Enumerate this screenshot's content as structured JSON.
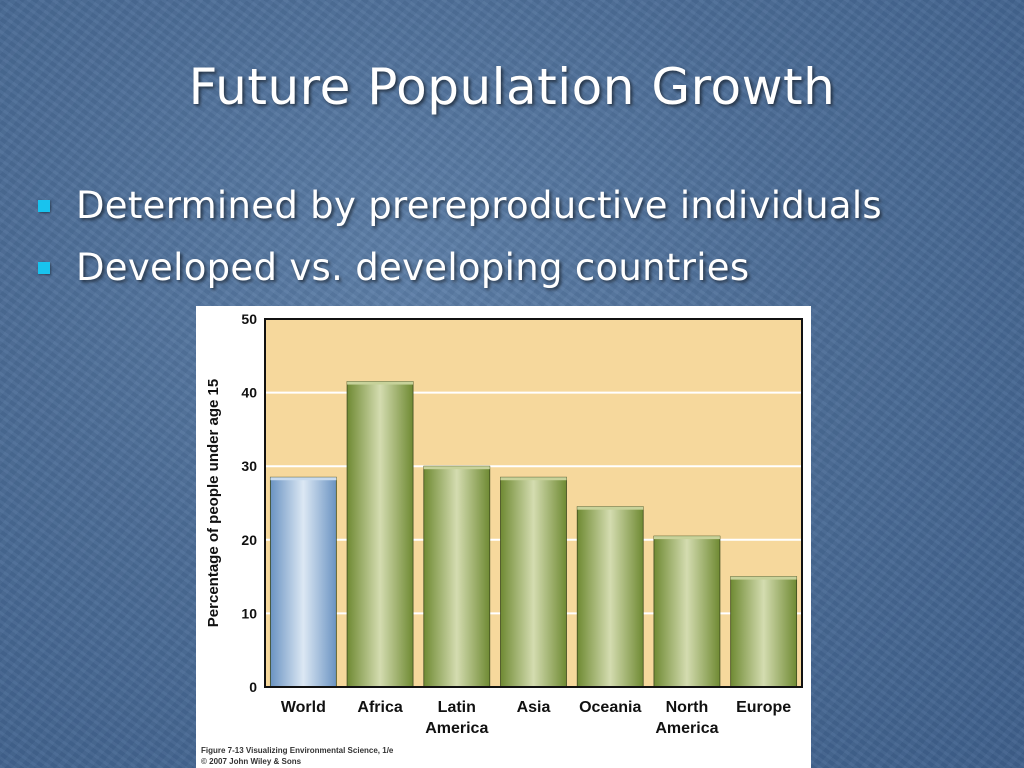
{
  "slide": {
    "title": "Future Population Growth",
    "bullets": [
      "Determined by prereproductive individuals",
      "Developed vs. developing countries"
    ],
    "bullet_color": "#18c3ee"
  },
  "figure": {
    "credit_line1": "Figure 7-13  Visualizing Environmental Science, 1/e",
    "credit_line2": "© 2007 John Wiley & Sons"
  },
  "chart_data": {
    "type": "bar",
    "categories": [
      [
        "World"
      ],
      [
        "Africa"
      ],
      [
        "Latin",
        "America"
      ],
      [
        "Asia"
      ],
      [
        "Oceania"
      ],
      [
        "North",
        "America"
      ],
      [
        "Europe"
      ]
    ],
    "values": [
      28.5,
      41.5,
      30,
      28.5,
      24.5,
      20.5,
      15
    ],
    "ylabel": "Percentage of people under age 15",
    "ylim": [
      0,
      50
    ],
    "yticks": [
      0,
      10,
      20,
      30,
      40,
      50
    ],
    "grid": true,
    "plot_background": "#f6d89c",
    "highlight_color": "#8fb3da",
    "bar_color": "#889f4a"
  }
}
